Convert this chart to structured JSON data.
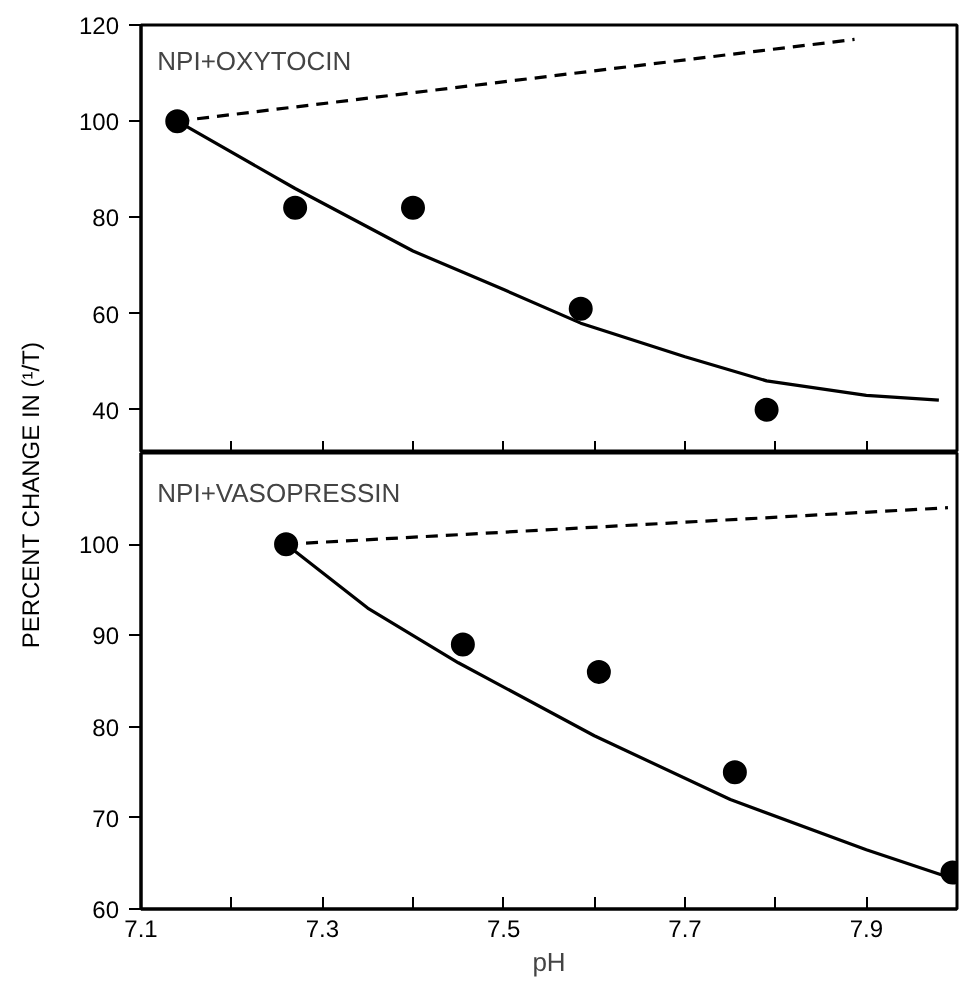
{
  "chart_data": [
    {
      "type": "scatter",
      "ylabel": "PERCENT CHANGE IN (¹/T)",
      "annotations": [
        "NPI+OXYTOCIN"
      ],
      "xlim": [
        7.1,
        8.0
      ],
      "xticks": [
        {
          "value": 7.1,
          "label": null
        },
        {
          "value": 7.2,
          "label": null
        },
        {
          "value": 7.3,
          "label": null
        },
        {
          "value": 7.4,
          "label": null
        },
        {
          "value": 7.5,
          "label": null
        },
        {
          "value": 7.6,
          "label": null
        },
        {
          "value": 7.7,
          "label": null
        },
        {
          "value": 7.8,
          "label": null
        },
        {
          "value": 7.9,
          "label": null
        }
      ],
      "ylim": [
        31,
        120
      ],
      "yticks": [
        40,
        60,
        80,
        100,
        120
      ],
      "tick_labels": "y",
      "series": [
        {
          "color": "#000000",
          "marker": "circle",
          "x": [
            7.14,
            7.27,
            7.4,
            7.585,
            7.79
          ],
          "values": [
            100,
            82,
            82,
            61,
            40
          ]
        },
        {
          "type": "line",
          "color": "#000000",
          "line_style": "solid",
          "marker": "none",
          "x": [
            7.14,
            7.27,
            7.4,
            7.5,
            7.585,
            7.7,
            7.79,
            7.9,
            7.98
          ],
          "values": [
            100,
            86,
            73,
            65,
            58,
            51,
            46,
            43,
            42
          ]
        },
        {
          "type": "line",
          "color": "#000000",
          "line_style": "dashed",
          "marker": "none",
          "x": [
            7.14,
            7.887
          ],
          "values": [
            100,
            117
          ]
        }
      ]
    },
    {
      "type": "scatter",
      "xlabel": "pH",
      "annotations": [
        "NPI+VASOPRESSIN"
      ],
      "xlim": [
        7.1,
        8.0
      ],
      "xticks": [
        7.1,
        {
          "value": 7.2,
          "label": null
        },
        7.3,
        {
          "value": 7.4,
          "label": null
        },
        7.5,
        {
          "value": 7.6,
          "label": null
        },
        7.7,
        {
          "value": 7.8,
          "label": null
        },
        7.9
      ],
      "ylim": [
        60,
        110
      ],
      "yticks": [
        60,
        70,
        80,
        90,
        100
      ],
      "series": [
        {
          "color": "#000000",
          "marker": "circle",
          "x": [
            7.26,
            7.455,
            7.605,
            7.755,
            7.995
          ],
          "values": [
            100,
            89,
            86,
            75,
            64
          ]
        },
        {
          "type": "line",
          "color": "#000000",
          "line_style": "solid",
          "marker": "none",
          "x": [
            7.26,
            7.35,
            7.45,
            7.6,
            7.75,
            7.9,
            7.99
          ],
          "values": [
            100,
            93,
            87,
            79,
            72,
            66.5,
            63.5
          ]
        },
        {
          "type": "line",
          "color": "#000000",
          "line_style": "dashed",
          "marker": "none",
          "x": [
            7.26,
            7.99
          ],
          "values": [
            100,
            104
          ]
        }
      ]
    }
  ]
}
